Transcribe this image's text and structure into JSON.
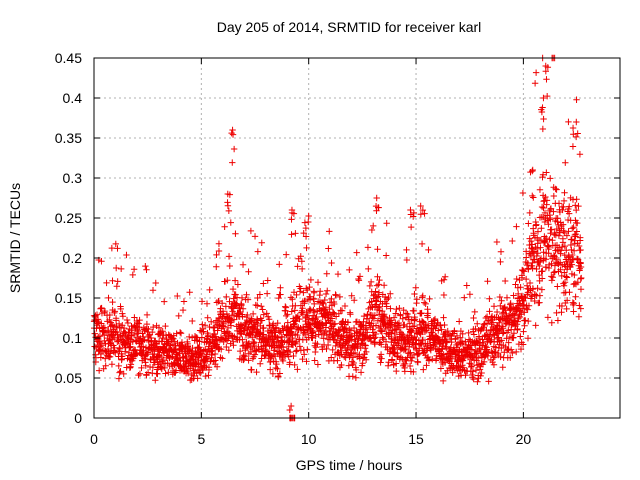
{
  "chart_data": {
    "type": "scatter",
    "title": "Day 205 of 2014, SRMTID for receiver karl",
    "xlabel": "GPS time / hours",
    "ylabel": "SRMTID / TECUs",
    "xlim": [
      0,
      24.5
    ],
    "ylim": [
      0,
      0.45
    ],
    "grid": true,
    "marker": "+",
    "color": "#ee0000",
    "x_ticks": [
      {
        "value": 0,
        "label": "0"
      },
      {
        "value": 5,
        "label": "5"
      },
      {
        "value": 10,
        "label": "10"
      },
      {
        "value": 15,
        "label": "15"
      },
      {
        "value": 20,
        "label": "20"
      }
    ],
    "y_ticks": [
      {
        "value": 0,
        "label": "0"
      },
      {
        "value": 0.05,
        "label": "0.05"
      },
      {
        "value": 0.1,
        "label": "0.1"
      },
      {
        "value": 0.15,
        "label": "0.15"
      },
      {
        "value": 0.2,
        "label": "0.2"
      },
      {
        "value": 0.25,
        "label": "0.25"
      },
      {
        "value": 0.3,
        "label": "0.3"
      },
      {
        "value": 0.35,
        "label": "0.35"
      },
      {
        "value": 0.4,
        "label": "0.4"
      },
      {
        "value": 0.45,
        "label": "0.45"
      }
    ],
    "x_range": [
      0,
      22.7
    ],
    "sample_interval_hours": 0.0125,
    "scatter_spread_fraction": 0.35,
    "envelope": [
      [
        0.0,
        0.11
      ],
      [
        0.3,
        0.1
      ],
      [
        1.0,
        0.1
      ],
      [
        2.0,
        0.09
      ],
      [
        3.0,
        0.085
      ],
      [
        4.0,
        0.075
      ],
      [
        4.7,
        0.075
      ],
      [
        5.2,
        0.08
      ],
      [
        6.0,
        0.12
      ],
      [
        6.5,
        0.13
      ],
      [
        7.0,
        0.11
      ],
      [
        8.0,
        0.1
      ],
      [
        8.5,
        0.09
      ],
      [
        9.0,
        0.1
      ],
      [
        9.5,
        0.12
      ],
      [
        10.0,
        0.13
      ],
      [
        11.0,
        0.115
      ],
      [
        12.0,
        0.09
      ],
      [
        12.5,
        0.1
      ],
      [
        13.2,
        0.13
      ],
      [
        14.0,
        0.1
      ],
      [
        15.0,
        0.1
      ],
      [
        15.5,
        0.11
      ],
      [
        16.0,
        0.095
      ],
      [
        17.0,
        0.075
      ],
      [
        17.5,
        0.08
      ],
      [
        18.0,
        0.085
      ],
      [
        18.5,
        0.1
      ],
      [
        19.0,
        0.11
      ],
      [
        19.5,
        0.12
      ],
      [
        20.0,
        0.15
      ],
      [
        20.5,
        0.2
      ],
      [
        21.0,
        0.24
      ],
      [
        21.5,
        0.22
      ],
      [
        22.0,
        0.21
      ],
      [
        22.5,
        0.2
      ],
      [
        22.7,
        0.17
      ]
    ],
    "peaks": [
      {
        "x": 6.5,
        "y": 0.36
      },
      {
        "x": 6.3,
        "y": 0.28
      },
      {
        "x": 9.3,
        "y": 0.26
      },
      {
        "x": 9.9,
        "y": 0.245
      },
      {
        "x": 13.2,
        "y": 0.275
      },
      {
        "x": 14.8,
        "y": 0.26
      },
      {
        "x": 15.3,
        "y": 0.265
      },
      {
        "x": 20.4,
        "y": 0.31
      },
      {
        "x": 20.9,
        "y": 0.4
      },
      {
        "x": 21.1,
        "y": 0.44
      },
      {
        "x": 22.4,
        "y": 0.37
      },
      {
        "x": 9.3,
        "y": 0.0
      },
      {
        "x": 9.2,
        "y": 0.015
      }
    ]
  }
}
